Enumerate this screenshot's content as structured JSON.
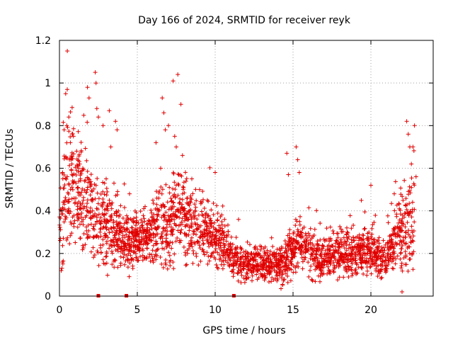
{
  "chart_data": {
    "type": "scatter",
    "title": "Day 166 of 2024, SRMTID for receiver reyk",
    "xlabel": "GPS time / hours",
    "ylabel": "SRMTID / TECUs",
    "xlim": [
      0,
      24
    ],
    "ylim": [
      0,
      1.2
    ],
    "xticks": [
      0,
      5,
      10,
      15,
      20
    ],
    "xtick_labels": [
      "0",
      "5",
      "10",
      "15",
      "20"
    ],
    "yticks": [
      0,
      0.2,
      0.4,
      0.6,
      0.8,
      1.0,
      1.2
    ],
    "ytick_labels": [
      "0",
      "0.2",
      "0.4",
      "0.6",
      "0.8",
      "1",
      "1.2"
    ],
    "grid": true,
    "series_color": "#e00000",
    "baseline_markers_x": [
      2.5,
      4.3,
      11.2
    ],
    "envelope": [
      [
        0.0,
        0.28,
        0.12
      ],
      [
        0.5,
        0.55,
        0.18
      ],
      [
        1.0,
        0.52,
        0.15
      ],
      [
        1.5,
        0.45,
        0.14
      ],
      [
        2.0,
        0.42,
        0.14
      ],
      [
        2.5,
        0.34,
        0.12
      ],
      [
        3.0,
        0.32,
        0.1
      ],
      [
        3.5,
        0.3,
        0.1
      ],
      [
        4.0,
        0.27,
        0.08
      ],
      [
        4.5,
        0.26,
        0.08
      ],
      [
        5.0,
        0.26,
        0.07
      ],
      [
        5.5,
        0.27,
        0.07
      ],
      [
        6.0,
        0.3,
        0.09
      ],
      [
        6.5,
        0.33,
        0.12
      ],
      [
        7.0,
        0.3,
        0.1
      ],
      [
        7.5,
        0.4,
        0.15
      ],
      [
        8.0,
        0.38,
        0.12
      ],
      [
        8.5,
        0.33,
        0.1
      ],
      [
        9.0,
        0.32,
        0.09
      ],
      [
        9.5,
        0.3,
        0.08
      ],
      [
        10.0,
        0.28,
        0.08
      ],
      [
        10.5,
        0.24,
        0.07
      ],
      [
        11.0,
        0.2,
        0.06
      ],
      [
        11.5,
        0.16,
        0.05
      ],
      [
        12.0,
        0.15,
        0.05
      ],
      [
        12.5,
        0.15,
        0.05
      ],
      [
        13.0,
        0.15,
        0.05
      ],
      [
        13.5,
        0.14,
        0.05
      ],
      [
        14.0,
        0.14,
        0.05
      ],
      [
        14.5,
        0.16,
        0.06
      ],
      [
        15.0,
        0.22,
        0.08
      ],
      [
        15.5,
        0.24,
        0.08
      ],
      [
        16.0,
        0.2,
        0.07
      ],
      [
        16.5,
        0.18,
        0.06
      ],
      [
        17.0,
        0.18,
        0.06
      ],
      [
        17.5,
        0.19,
        0.06
      ],
      [
        18.0,
        0.2,
        0.07
      ],
      [
        18.5,
        0.21,
        0.07
      ],
      [
        19.0,
        0.21,
        0.07
      ],
      [
        19.5,
        0.21,
        0.07
      ],
      [
        20.0,
        0.2,
        0.06
      ],
      [
        20.5,
        0.19,
        0.06
      ],
      [
        21.0,
        0.18,
        0.05
      ],
      [
        21.5,
        0.26,
        0.08
      ],
      [
        22.0,
        0.3,
        0.1
      ],
      [
        22.5,
        0.35,
        0.12
      ],
      [
        22.8,
        0.38,
        0.14
      ]
    ],
    "points": [
      [
        0.1,
        0.4
      ],
      [
        0.3,
        0.78
      ],
      [
        0.4,
        0.95
      ],
      [
        0.5,
        0.97
      ],
      [
        0.6,
        0.84
      ],
      [
        0.7,
        0.72
      ],
      [
        0.9,
        0.75
      ],
      [
        1.1,
        0.68
      ],
      [
        1.3,
        0.62
      ],
      [
        1.8,
        0.98
      ],
      [
        1.9,
        0.93
      ],
      [
        2.3,
        1.05
      ],
      [
        2.35,
        1.0
      ],
      [
        2.4,
        0.88
      ],
      [
        2.5,
        0.84
      ],
      [
        2.8,
        0.8
      ],
      [
        3.2,
        0.87
      ],
      [
        3.6,
        0.82
      ],
      [
        3.7,
        0.78
      ],
      [
        3.3,
        0.7
      ],
      [
        6.6,
        0.93
      ],
      [
        6.7,
        0.86
      ],
      [
        6.8,
        0.78
      ],
      [
        7.0,
        0.8
      ],
      [
        7.3,
        1.01
      ],
      [
        7.6,
        1.04
      ],
      [
        7.8,
        0.9
      ],
      [
        7.4,
        0.75
      ],
      [
        7.5,
        0.7
      ],
      [
        7.9,
        0.66
      ],
      [
        6.2,
        0.72
      ],
      [
        6.5,
        0.6
      ],
      [
        9.0,
        0.5
      ],
      [
        10.0,
        0.58
      ],
      [
        10.6,
        0.36
      ],
      [
        11.5,
        0.36
      ],
      [
        14.6,
        0.67
      ],
      [
        14.7,
        0.57
      ],
      [
        15.2,
        0.7
      ],
      [
        15.3,
        0.64
      ],
      [
        15.4,
        0.58
      ],
      [
        20.0,
        0.52
      ],
      [
        21.5,
        0.48
      ],
      [
        22.3,
        0.82
      ],
      [
        22.4,
        0.76
      ],
      [
        22.5,
        0.7
      ],
      [
        22.8,
        0.8
      ],
      [
        22.7,
        0.7
      ],
      [
        22.6,
        0.62
      ],
      [
        22.9,
        0.56
      ],
      [
        0.2,
        0.58
      ],
      [
        0.8,
        0.62
      ],
      [
        1.5,
        0.6
      ],
      [
        2.0,
        0.52
      ],
      [
        3.0,
        0.55
      ],
      [
        3.5,
        0.53
      ],
      [
        4.5,
        0.48
      ],
      [
        5.5,
        0.42
      ],
      [
        6.0,
        0.45
      ],
      [
        8.5,
        0.55
      ],
      [
        9.5,
        0.45
      ],
      [
        22.0,
        0.02
      ]
    ]
  }
}
